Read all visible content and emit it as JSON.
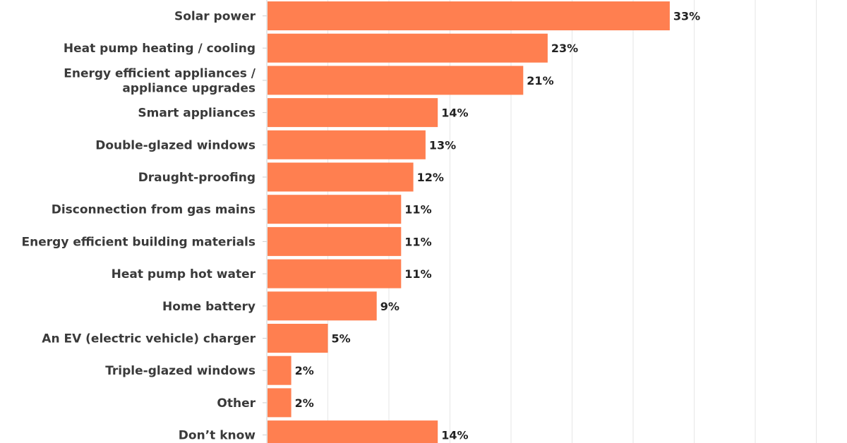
{
  "chart_data": {
    "type": "bar",
    "orientation": "horizontal",
    "categories": [
      [
        "Solar power"
      ],
      [
        "Heat pump heating / cooling"
      ],
      [
        "Energy efficient appliances /",
        "appliance upgrades"
      ],
      [
        "Smart appliances"
      ],
      [
        "Double-glazed windows"
      ],
      [
        "Draught-proofing"
      ],
      [
        "Disconnection from gas mains"
      ],
      [
        "Energy efficient building materials"
      ],
      [
        "Heat pump hot water"
      ],
      [
        "Home battery"
      ],
      [
        "An EV (electric vehicle) charger"
      ],
      [
        "Triple-glazed windows"
      ],
      [
        "Other"
      ],
      [
        "Don’t know"
      ]
    ],
    "values": [
      33,
      23,
      21,
      14,
      13,
      12,
      11,
      11,
      11,
      9,
      5,
      2,
      2,
      14
    ],
    "value_labels": [
      "33%",
      "23%",
      "21%",
      "14%",
      "13%",
      "12%",
      "11%",
      "11%",
      "11%",
      "9%",
      "5%",
      "2%",
      "2%",
      "14%"
    ],
    "xlim": [
      0,
      45
    ],
    "gridlines": [
      5,
      10,
      15,
      20,
      25,
      30,
      35,
      40,
      45
    ],
    "grid": true,
    "bar_color": "#FF7F50",
    "grid_color": "#e6e6e6",
    "axis_color": "#cfcfcf",
    "title": "",
    "xlabel": "",
    "ylabel": ""
  }
}
